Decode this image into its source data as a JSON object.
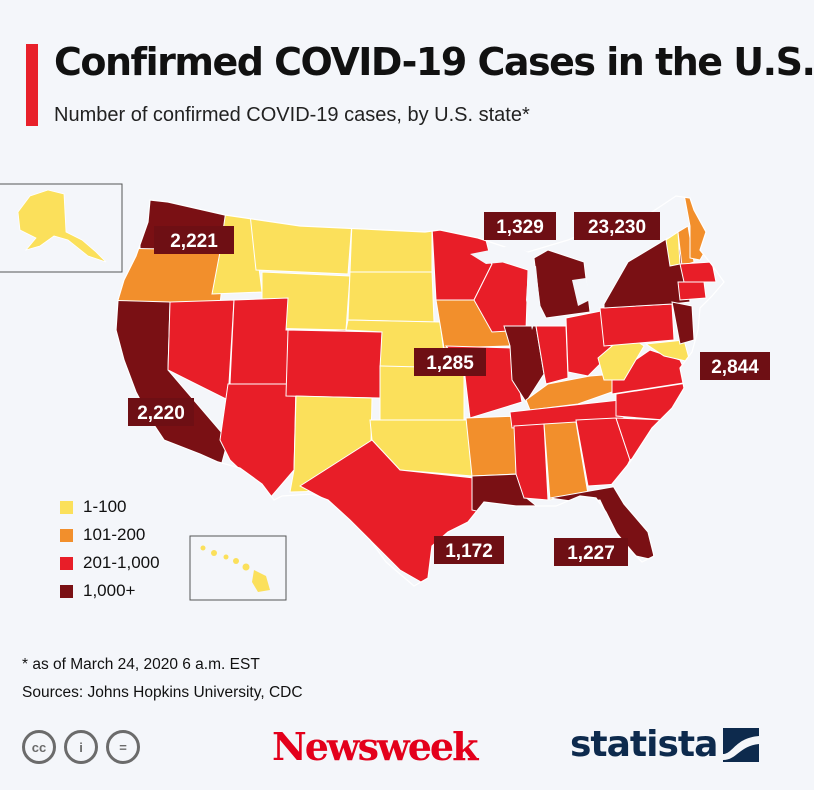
{
  "header": {
    "title": "Confirmed COVID-19 Cases in the U.S.",
    "subtitle": "Number of confirmed COVID-19 cases, by U.S. state*"
  },
  "colors": {
    "accent": "#e8202a",
    "tier_1_100": "#fbe05b",
    "tier_101_200": "#f28f2c",
    "tier_201_1000": "#e81e28",
    "tier_1000_plus": "#7a1014",
    "label_bg": "#6e0f14"
  },
  "legend": [
    {
      "label": "1-100",
      "color": "#fbe05b"
    },
    {
      "label": "101-200",
      "color": "#f28f2c"
    },
    {
      "label": "201-1,000",
      "color": "#e81e28"
    },
    {
      "label": "1,000+",
      "color": "#7a1014"
    }
  ],
  "callouts": [
    {
      "state": "Washington",
      "value": "2,221"
    },
    {
      "state": "Michigan",
      "value": "1,329"
    },
    {
      "state": "New York",
      "value": "23,230"
    },
    {
      "state": "Illinois",
      "value": "1,285"
    },
    {
      "state": "New Jersey",
      "value": "2,844"
    },
    {
      "state": "California",
      "value": "2,220"
    },
    {
      "state": "Louisiana",
      "value": "1,172"
    },
    {
      "state": "Florida",
      "value": "1,227"
    }
  ],
  "footer": {
    "footnote": "* as of March 24, 2020 6 a.m. EST",
    "sources": "Sources: Johns Hopkins University, CDC",
    "license_icons": [
      "cc-icon",
      "attribution-icon",
      "no-derivatives-icon"
    ],
    "license_glyphs": [
      "cc",
      "i",
      "="
    ],
    "brand_newsweek": "Newsweek",
    "brand_statista": "statista"
  }
}
